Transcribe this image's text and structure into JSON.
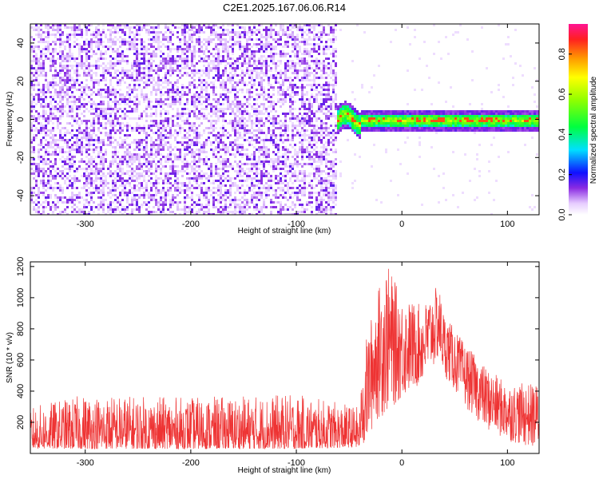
{
  "figure": {
    "title": "C2E1.2025.167.06.06.R14"
  },
  "chart_data": [
    {
      "type": "heatmap",
      "title": "C2E1.2025.167.06.06.R14",
      "xlabel": "Height of straight line (km)",
      "ylabel": "Frequency (Hz)",
      "xlim": [
        -352,
        130
      ],
      "ylim": [
        -50,
        50
      ],
      "x_ticks": [
        -300,
        -200,
        -100,
        0,
        100
      ],
      "y_ticks": [
        -40,
        -20,
        0,
        20,
        40
      ],
      "grid": false,
      "colorbar": {
        "label": "Normalized spectral amplitude",
        "range": [
          0,
          0.95
        ],
        "ticks": [
          0.0,
          0.2,
          0.4,
          0.6,
          0.8
        ]
      },
      "regions": [
        {
          "x": [
            -352,
            -62
          ],
          "description": "broadband noise",
          "amplitude_range": [
            0.02,
            0.15
          ]
        },
        {
          "x": [
            -62,
            130
          ],
          "description": "narrowband signal near 0 Hz",
          "center_frequency_hz": 0,
          "peak_amplitude": 0.92
        }
      ]
    },
    {
      "type": "line",
      "xlabel": "Height of straight line (km)",
      "ylabel": "SNR (10 * v/v)",
      "xlim": [
        -352,
        130
      ],
      "ylim": [
        0,
        1230
      ],
      "x_ticks": [
        -300,
        -200,
        -100,
        0,
        100
      ],
      "y_ticks": [
        200,
        400,
        600,
        800,
        1000,
        1200
      ],
      "grid": false,
      "series": [
        {
          "color": "#ee3333",
          "envelope_x": [
            -352,
            -300,
            -200,
            -100,
            -40,
            -35,
            -25,
            -15,
            0,
            20,
            30,
            35,
            40,
            60,
            80,
            100,
            130
          ],
          "envelope_low": [
            30,
            30,
            30,
            30,
            40,
            20,
            200,
            250,
            350,
            450,
            550,
            600,
            500,
            300,
            150,
            80,
            20
          ],
          "envelope_high": [
            300,
            380,
            360,
            380,
            300,
            700,
            1000,
            1230,
            1000,
            950,
            1050,
            1080,
            900,
            700,
            550,
            450,
            450
          ]
        }
      ]
    }
  ]
}
